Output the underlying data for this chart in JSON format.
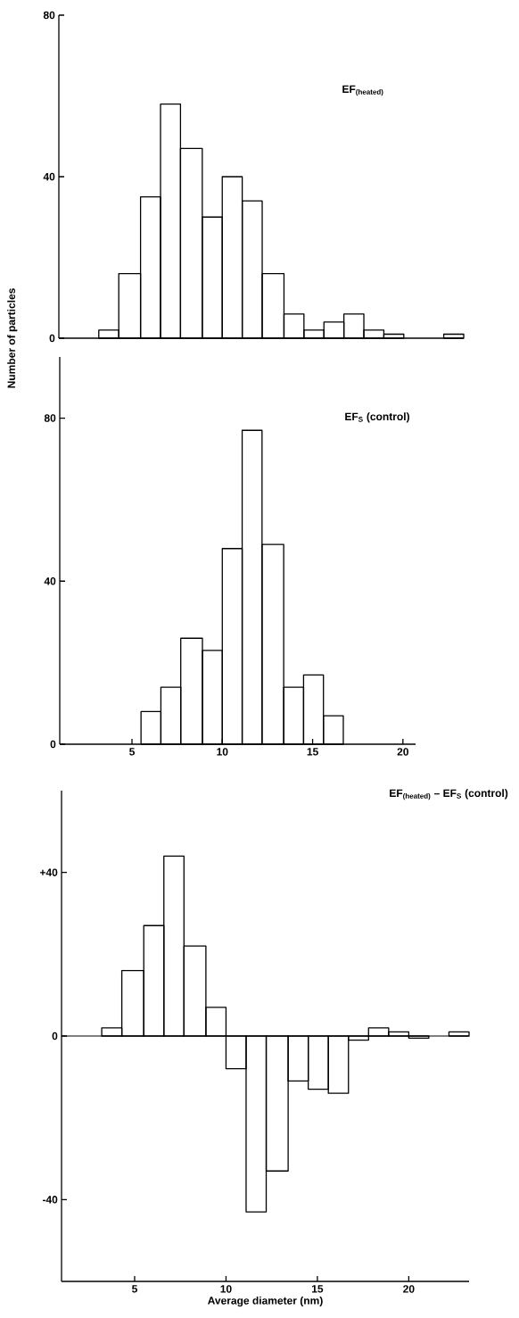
{
  "chart_data": [
    {
      "type": "histogram",
      "title": "EF$_{(heated)}$",
      "ylabel": "Number of particles",
      "bins": [
        3.2,
        4.3,
        5.5,
        6.6,
        7.7,
        8.9,
        10.0,
        11.1,
        12.2,
        13.4,
        14.5,
        15.6,
        16.7,
        17.8,
        18.9,
        20.0,
        22.2,
        23.3
      ],
      "values": [
        2,
        16,
        35,
        58,
        47,
        30,
        40,
        34,
        16,
        6,
        2,
        4,
        6,
        2,
        1,
        0,
        1
      ],
      "color": "#000000",
      "xlim": [
        1,
        23.3
      ],
      "ylim": [
        0,
        80
      ],
      "yticks": [
        0,
        40,
        80
      ],
      "tick_labels": "y"
    },
    {
      "type": "histogram",
      "title": "EF$_{S}$ (control)",
      "bins": [
        5.5,
        6.6,
        7.7,
        8.9,
        10.0,
        11.1,
        12.2,
        13.4,
        14.5,
        15.6,
        16.7
      ],
      "values": [
        8,
        14,
        26,
        23,
        48,
        77,
        49,
        14,
        17,
        7
      ],
      "color": "#000000",
      "xlim": [
        1,
        20.7
      ],
      "ylim": [
        0,
        95
      ],
      "xticks": [
        5,
        10,
        15,
        20
      ],
      "yticks": [
        0,
        40,
        80
      ]
    },
    {
      "type": "histogram",
      "title": "EF$_{(heated)}$ – EF$_{S}$ (control)",
      "xlabel": "Average diameter (nm)",
      "bins": [
        3.2,
        4.3,
        5.5,
        6.6,
        7.7,
        8.9,
        10.0,
        11.1,
        12.2,
        13.4,
        14.5,
        15.6,
        16.7,
        17.8,
        18.9,
        20.0,
        21.1,
        22.2,
        23.3
      ],
      "values": [
        2,
        16,
        27,
        44,
        22,
        7,
        -8,
        -43,
        -33,
        -11,
        -13,
        -14,
        -1,
        2,
        1,
        -0.5,
        0,
        1
      ],
      "color": "#000000",
      "xlim": [
        1,
        23.3
      ],
      "ylim": [
        -60,
        60
      ],
      "xticks": [
        5,
        10,
        15,
        20
      ],
      "yticks": [
        -40,
        0,
        {
          "value": 40,
          "label": "+40"
        }
      ],
      "ref_lines": [
        {
          "axis": "y",
          "value": 0,
          "color": "#000000"
        }
      ]
    }
  ]
}
